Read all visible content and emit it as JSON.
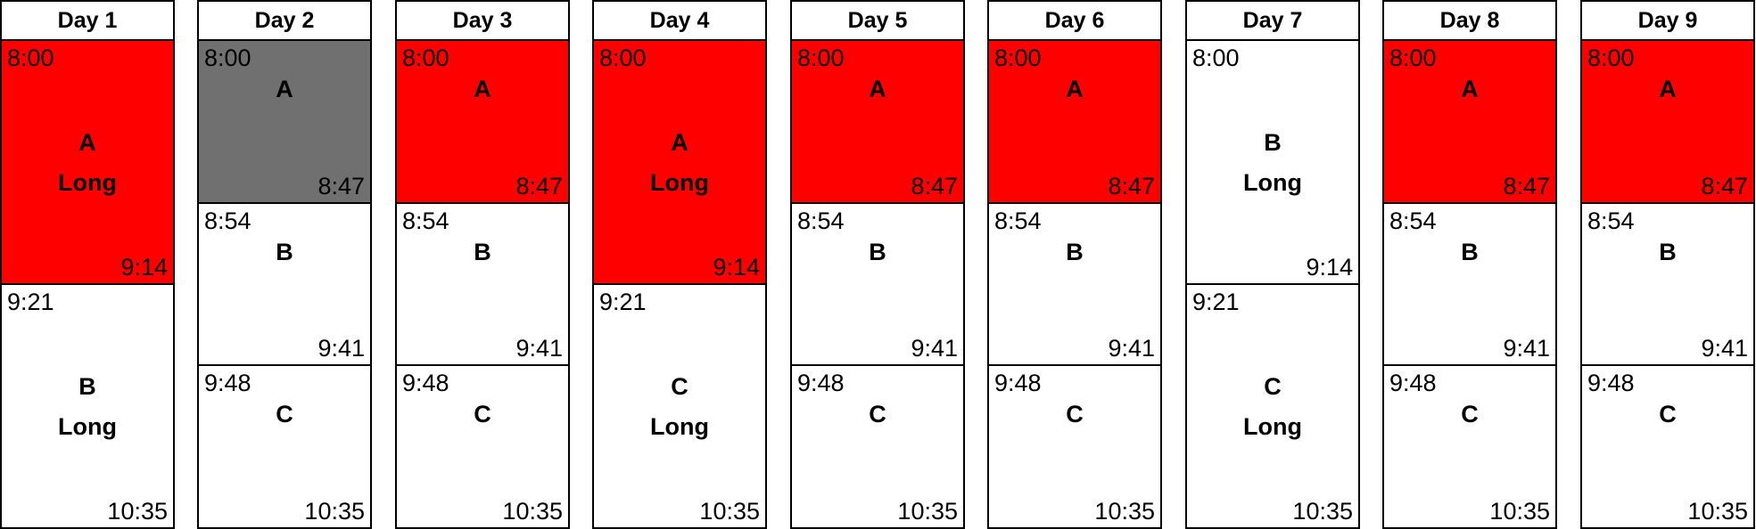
{
  "colors": {
    "red": "#ff0000",
    "gray": "#707070",
    "white": "#ffffff",
    "line": "#000000"
  },
  "days": [
    {
      "title": "Day 1",
      "blocks": [
        {
          "start": "8:00",
          "end": "9:14",
          "label": "A",
          "sub": "Long",
          "color": "#ff0000",
          "span": 3
        },
        {
          "start": "9:21",
          "end": "10:35",
          "label": "B",
          "sub": "Long",
          "color": "#ffffff",
          "span": 3
        }
      ]
    },
    {
      "title": "Day 2",
      "blocks": [
        {
          "start": "8:00",
          "end": "8:47",
          "label": "A",
          "sub": "",
          "color": "#707070",
          "span": 2
        },
        {
          "start": "8:54",
          "end": "9:41",
          "label": "B",
          "sub": "",
          "color": "#ffffff",
          "span": 2
        },
        {
          "start": "9:48",
          "end": "10:35",
          "label": "C",
          "sub": "",
          "color": "#ffffff",
          "span": 2
        }
      ]
    },
    {
      "title": "Day 3",
      "blocks": [
        {
          "start": "8:00",
          "end": "8:47",
          "label": "A",
          "sub": "",
          "color": "#ff0000",
          "span": 2
        },
        {
          "start": "8:54",
          "end": "9:41",
          "label": "B",
          "sub": "",
          "color": "#ffffff",
          "span": 2
        },
        {
          "start": "9:48",
          "end": "10:35",
          "label": "C",
          "sub": "",
          "color": "#ffffff",
          "span": 2
        }
      ]
    },
    {
      "title": "Day 4",
      "blocks": [
        {
          "start": "8:00",
          "end": "9:14",
          "label": "A",
          "sub": "Long",
          "color": "#ff0000",
          "span": 3
        },
        {
          "start": "9:21",
          "end": "10:35",
          "label": "C",
          "sub": "Long",
          "color": "#ffffff",
          "span": 3
        }
      ]
    },
    {
      "title": "Day 5",
      "blocks": [
        {
          "start": "8:00",
          "end": "8:47",
          "label": "A",
          "sub": "",
          "color": "#ff0000",
          "span": 2
        },
        {
          "start": "8:54",
          "end": "9:41",
          "label": "B",
          "sub": "",
          "color": "#ffffff",
          "span": 2
        },
        {
          "start": "9:48",
          "end": "10:35",
          "label": "C",
          "sub": "",
          "color": "#ffffff",
          "span": 2
        }
      ]
    },
    {
      "title": "Day 6",
      "blocks": [
        {
          "start": "8:00",
          "end": "8:47",
          "label": "A",
          "sub": "",
          "color": "#ff0000",
          "span": 2
        },
        {
          "start": "8:54",
          "end": "9:41",
          "label": "B",
          "sub": "",
          "color": "#ffffff",
          "span": 2
        },
        {
          "start": "9:48",
          "end": "10:35",
          "label": "C",
          "sub": "",
          "color": "#ffffff",
          "span": 2
        }
      ]
    },
    {
      "title": "Day 7",
      "blocks": [
        {
          "start": "8:00",
          "end": "9:14",
          "label": "B",
          "sub": "Long",
          "color": "#ffffff",
          "span": 3
        },
        {
          "start": "9:21",
          "end": "10:35",
          "label": "C",
          "sub": "Long",
          "color": "#ffffff",
          "span": 3
        }
      ]
    },
    {
      "title": "Day 8",
      "blocks": [
        {
          "start": "8:00",
          "end": "8:47",
          "label": "A",
          "sub": "",
          "color": "#ff0000",
          "span": 2
        },
        {
          "start": "8:54",
          "end": "9:41",
          "label": "B",
          "sub": "",
          "color": "#ffffff",
          "span": 2
        },
        {
          "start": "9:48",
          "end": "10:35",
          "label": "C",
          "sub": "",
          "color": "#ffffff",
          "span": 2
        }
      ]
    },
    {
      "title": "Day 9",
      "blocks": [
        {
          "start": "8:00",
          "end": "8:47",
          "label": "A",
          "sub": "",
          "color": "#ff0000",
          "span": 2
        },
        {
          "start": "8:54",
          "end": "9:41",
          "label": "B",
          "sub": "",
          "color": "#ffffff",
          "span": 2
        },
        {
          "start": "9:48",
          "end": "10:35",
          "label": "C",
          "sub": "",
          "color": "#ffffff",
          "span": 2
        }
      ]
    }
  ]
}
